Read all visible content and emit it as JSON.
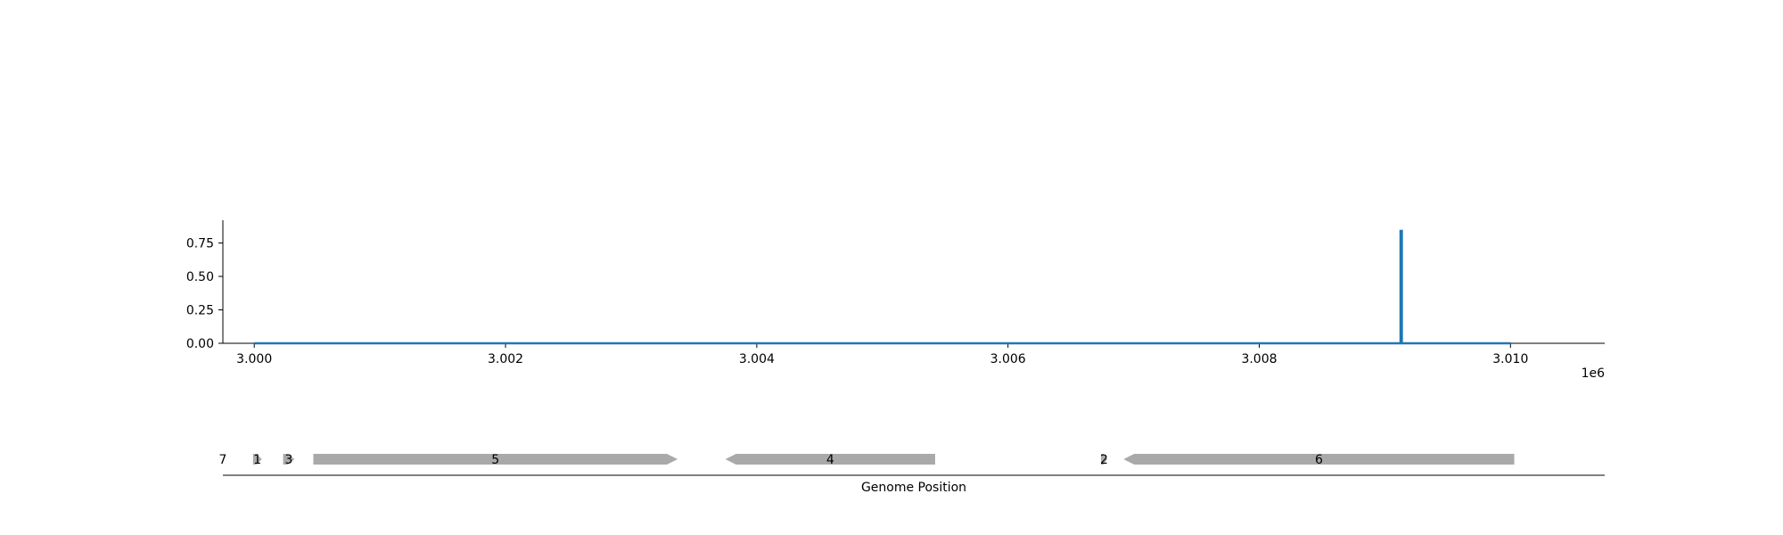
{
  "chart_data": [
    {
      "type": "line",
      "title": "",
      "xlabel": "",
      "ylabel": "",
      "x_offset_label": "1e6",
      "xlim": [
        2999750,
        3010750
      ],
      "ylim": [
        0,
        0.92
      ],
      "x_ticks": [
        3000000,
        3002000,
        3004000,
        3006000,
        3008000,
        3010000
      ],
      "x_tick_labels": [
        "3.000",
        "3.002",
        "3.004",
        "3.006",
        "3.008",
        "3.010"
      ],
      "y_ticks": [
        0,
        0.25,
        0.5,
        0.75
      ],
      "y_tick_labels": [
        "0.00",
        "0.25",
        "0.50",
        "0.75"
      ],
      "grid": false,
      "series": [
        {
          "color": "#1f77b4",
          "x": [
            3000000,
            3009125,
            3009125,
            3009135,
            3009135,
            3010000
          ],
          "y": [
            0,
            0,
            0.84,
            0.84,
            0,
            0
          ]
        }
      ]
    },
    {
      "type": "gene-track",
      "xlabel": "Genome Position",
      "xlim": [
        2999750,
        3010750
      ],
      "feature_color": "#a9a9a9",
      "features": [
        {
          "label": "7",
          "start": 2999620,
          "end": 2999700,
          "strand": 1
        },
        {
          "label": "1",
          "start": 2999990,
          "end": 3000060,
          "strand": 1
        },
        {
          "label": "3",
          "start": 3000230,
          "end": 3000320,
          "strand": 1
        },
        {
          "label": "5",
          "start": 3000470,
          "end": 3003370,
          "strand": 1
        },
        {
          "label": "4",
          "start": 3003750,
          "end": 3005420,
          "strand": -1
        },
        {
          "label": "2",
          "start": 3006740,
          "end": 3006790,
          "strand": 1
        },
        {
          "label": "6",
          "start": 3006920,
          "end": 3010030,
          "strand": -1
        }
      ]
    }
  ]
}
